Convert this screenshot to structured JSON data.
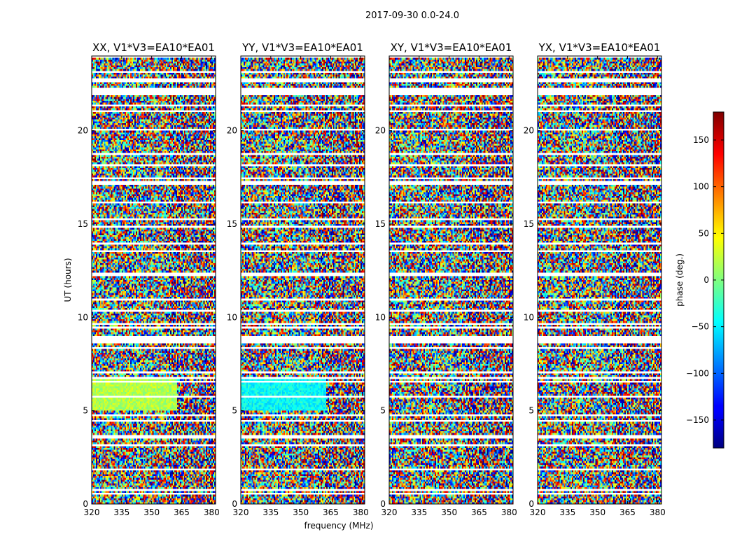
{
  "figure": {
    "suptitle": "2017-09-30 0.0-24.0"
  },
  "chart_data": [
    {
      "type": "heatmap",
      "title": "XX, V1*V3=EA10*EA01",
      "xlabel": "",
      "ylabel": "UT (hours)",
      "xlim": [
        320,
        382
      ],
      "ylim": [
        0,
        24
      ],
      "xticks": [
        320,
        335,
        350,
        365,
        380
      ],
      "yticks": [
        0,
        5,
        10,
        15,
        20
      ],
      "grid": false
    },
    {
      "type": "heatmap",
      "title": "YY, V1*V3=EA10*EA01",
      "xlabel": "frequency (MHz)",
      "ylabel": "",
      "xlim": [
        320,
        382
      ],
      "ylim": [
        0,
        24
      ],
      "xticks": [
        320,
        335,
        350,
        365,
        380
      ],
      "yticks": [
        0,
        5,
        10,
        15,
        20
      ],
      "grid": false
    },
    {
      "type": "heatmap",
      "title": "XY, V1*V3=EA10*EA01",
      "xlabel": "",
      "ylabel": "",
      "xlim": [
        320,
        382
      ],
      "ylim": [
        0,
        24
      ],
      "xticks": [
        320,
        335,
        350,
        365,
        380
      ],
      "yticks": [
        0,
        5,
        10,
        15,
        20
      ],
      "grid": false
    },
    {
      "type": "heatmap",
      "title": "YX, V1*V3=EA10*EA01",
      "xlabel": "",
      "ylabel": "",
      "xlim": [
        320,
        382
      ],
      "ylim": [
        0,
        24
      ],
      "xticks": [
        320,
        335,
        350,
        365,
        380
      ],
      "yticks": [
        0,
        5,
        10,
        15,
        20
      ],
      "grid": false
    }
  ],
  "colorbar": {
    "label": "phase (deg.)",
    "range": [
      -180,
      180
    ],
    "ticks": [
      150,
      100,
      50,
      0,
      -50,
      -100,
      -150
    ],
    "colormap": "jet"
  },
  "colors": {
    "axes": "#000000",
    "background": "#ffffff"
  }
}
